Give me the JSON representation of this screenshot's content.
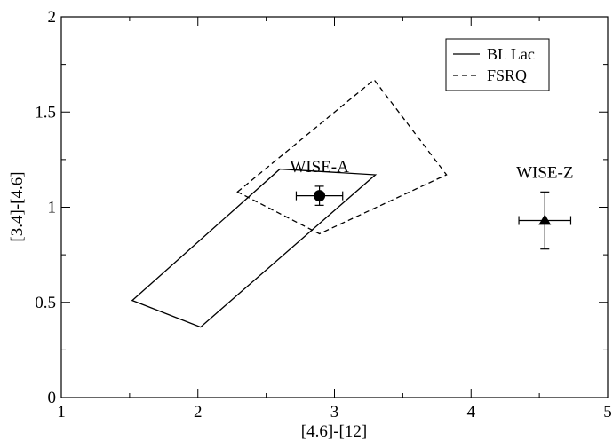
{
  "chart_data": {
    "type": "scatter",
    "xlabel": "[4.6]-[12]",
    "ylabel": "[3.4]-[4.6]",
    "xlim": [
      1,
      5
    ],
    "ylim": [
      0,
      2
    ],
    "xticks": [
      "1",
      "2",
      "3",
      "4",
      "5"
    ],
    "yticks": [
      "0",
      "0.5",
      "1",
      "1.5",
      "2"
    ],
    "grid": false,
    "legend_position": "top-right",
    "legend": [
      {
        "label": "BL Lac",
        "style": "solid"
      },
      {
        "label": "FSRQ",
        "style": "dashed"
      }
    ],
    "regions": [
      {
        "name": "BL Lac",
        "style": "solid",
        "vertices": [
          [
            1.52,
            0.51
          ],
          [
            2.6,
            1.2
          ],
          [
            3.3,
            1.17
          ],
          [
            2.02,
            0.37
          ]
        ]
      },
      {
        "name": "FSRQ",
        "style": "dashed",
        "vertices": [
          [
            2.29,
            1.08
          ],
          [
            3.29,
            1.67
          ],
          [
            3.82,
            1.17
          ],
          [
            2.89,
            0.86
          ]
        ]
      }
    ],
    "points": [
      {
        "label": "WISE-A",
        "marker": "circle",
        "x": 2.89,
        "y": 1.06,
        "x_err": 0.17,
        "y_err": 0.05
      },
      {
        "label": "WISE-Z",
        "marker": "triangle",
        "x": 4.54,
        "y": 0.93,
        "x_err": 0.19,
        "y_err": 0.15
      }
    ]
  }
}
